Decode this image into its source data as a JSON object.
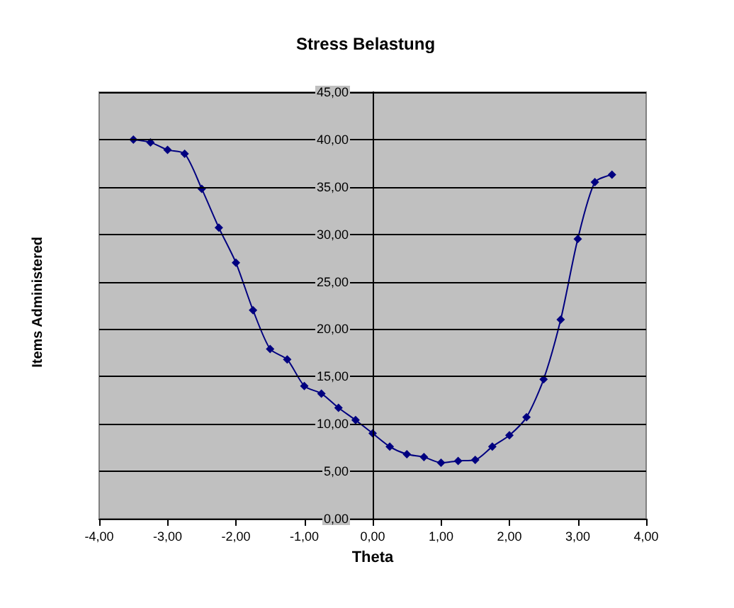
{
  "chart_data": {
    "type": "line",
    "title": "Stress Belastung",
    "xlabel": "Theta",
    "ylabel": "Items Administered",
    "x": [
      -3.5,
      -3.25,
      -3.0,
      -2.75,
      -2.5,
      -2.25,
      -2.0,
      -1.75,
      -1.5,
      -1.25,
      -1.0,
      -0.75,
      -0.5,
      -0.25,
      0,
      0.25,
      0.5,
      0.75,
      1.0,
      1.25,
      1.5,
      1.75,
      2.0,
      2.25,
      2.5,
      2.75,
      3.0,
      3.25,
      3.5
    ],
    "series": [
      {
        "color": "#000080",
        "values": [
          40.0,
          39.7,
          38.9,
          38.5,
          34.8,
          30.7,
          27.0,
          22.0,
          17.9,
          16.8,
          14.0,
          13.2,
          11.7,
          10.4,
          9.0,
          7.6,
          6.8,
          6.5,
          5.9,
          6.1,
          6.2,
          7.6,
          8.8,
          10.7,
          14.7,
          21.0,
          29.5,
          35.5,
          36.3
        ]
      }
    ],
    "xlim": [
      -4,
      4
    ],
    "xticks": [
      {
        "value": -4,
        "label": "-4,00"
      },
      {
        "value": -3,
        "label": "-3,00"
      },
      {
        "value": -2,
        "label": "-2,00"
      },
      {
        "value": -1,
        "label": "-1,00"
      },
      {
        "value": 0,
        "label": "0,00"
      },
      {
        "value": 1,
        "label": "1,00"
      },
      {
        "value": 2,
        "label": "2,00"
      },
      {
        "value": 3,
        "label": "3,00"
      },
      {
        "value": 4,
        "label": "4,00"
      }
    ],
    "ylim": [
      0,
      45
    ],
    "yticks": [
      {
        "value": 0,
        "label": "0,00"
      },
      {
        "value": 5,
        "label": "5,00"
      },
      {
        "value": 10,
        "label": "10,00"
      },
      {
        "value": 15,
        "label": "15,00"
      },
      {
        "value": 20,
        "label": "20,00"
      },
      {
        "value": 25,
        "label": "25,00"
      },
      {
        "value": 30,
        "label": "30,00"
      },
      {
        "value": 35,
        "label": "35,00"
      },
      {
        "value": 40,
        "label": "40,00"
      },
      {
        "value": 45,
        "label": "45,00"
      }
    ],
    "grid": "y",
    "marker": "diamond",
    "line_style": "solid"
  }
}
